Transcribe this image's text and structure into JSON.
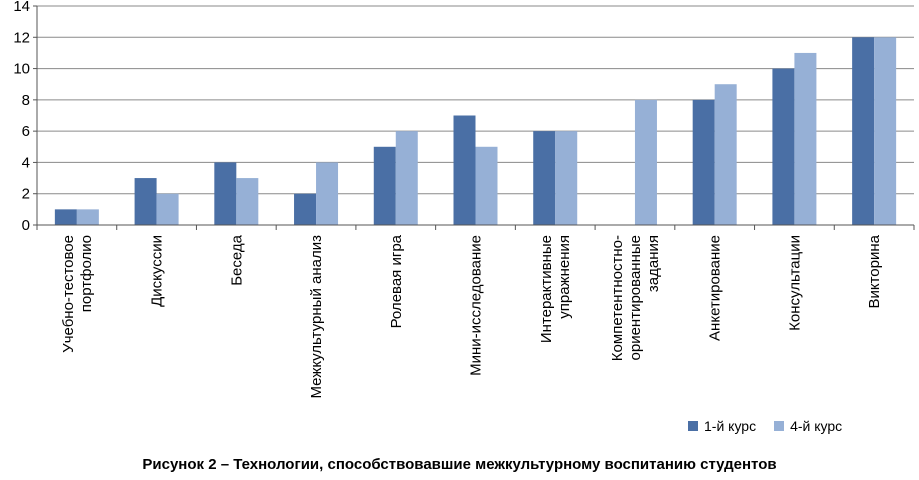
{
  "chart_data": {
    "type": "bar",
    "categories": [
      "Учебно-тестовое портфолио",
      "Дискуссии",
      "Беседа",
      "Межкультурный анализ",
      "Ролевая игра",
      "Мини-исследование",
      "Интерактивные упражнения",
      "Компетентностно- ориентированные задания",
      "Анкетирование",
      "Консультации",
      "Викторина"
    ],
    "category_lines": [
      [
        "Учебно-тестовое",
        "портфолио"
      ],
      [
        "Дискуссии"
      ],
      [
        "Беседа"
      ],
      [
        "Межкультурный анализ"
      ],
      [
        "Ролевая игра"
      ],
      [
        "Мини-исследование"
      ],
      [
        "Интерактивные",
        "упражнения"
      ],
      [
        "Компетентностно-",
        "ориентированные",
        "задания"
      ],
      [
        "Анкетирование"
      ],
      [
        "Консультации"
      ],
      [
        "Викторина"
      ]
    ],
    "series": [
      {
        "name": "1-й курс",
        "color": "#4a6fa5",
        "values": [
          1,
          3,
          4,
          2,
          5,
          7,
          6,
          0,
          8,
          10,
          12
        ]
      },
      {
        "name": "4-й курс",
        "color": "#96b0d6",
        "values": [
          1,
          2,
          3,
          4,
          6,
          5,
          6,
          8,
          9,
          11,
          12
        ]
      }
    ],
    "yticks": [
      "0",
      "2",
      "4",
      "6",
      "8",
      "10",
      "12",
      "14"
    ],
    "ylim": [
      0,
      14
    ],
    "grid": true,
    "legend": "bottom-right",
    "caption": "Рисунок 2 – Технологии, способствовавшие межкультурному воспитанию студентов"
  }
}
